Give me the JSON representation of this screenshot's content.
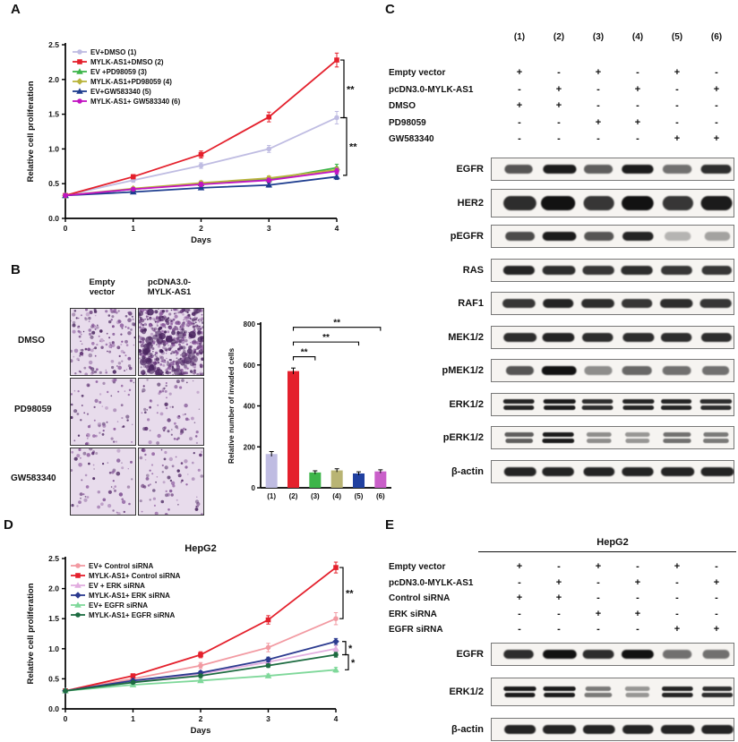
{
  "panels": {
    "A": {
      "label": "A"
    },
    "B": {
      "label": "B",
      "col_headers": [
        [
          "Empty",
          "vector"
        ],
        [
          "pcDNA3.0-",
          "MYLK-AS1"
        ]
      ],
      "row_labels": [
        "DMSO",
        "PD98059",
        "GW583340"
      ],
      "image_densities": [
        [
          165,
          570
        ],
        [
          75,
          85
        ],
        [
          70,
          80
        ]
      ]
    },
    "C": {
      "label": "C",
      "lanes": [
        "(1)",
        "(2)",
        "(3)",
        "(4)",
        "(5)",
        "(6)"
      ],
      "conditions": [
        {
          "name": "Empty vector",
          "marks": [
            "+",
            "-",
            "+",
            "-",
            "+",
            "-"
          ]
        },
        {
          "name": "pcDN3.0-MYLK-AS1",
          "marks": [
            "-",
            "+",
            "-",
            "+",
            "-",
            "+"
          ]
        },
        {
          "name": "DMSO",
          "marks": [
            "+",
            "+",
            "-",
            "-",
            "-",
            "-"
          ]
        },
        {
          "name": "PD98059",
          "marks": [
            "-",
            "-",
            "+",
            "+",
            "-",
            "-"
          ]
        },
        {
          "name": "GW583340",
          "marks": [
            "-",
            "-",
            "-",
            "-",
            "+",
            "+"
          ]
        }
      ],
      "blots": [
        {
          "name": "EGFR",
          "bands": [
            0.65,
            0.95,
            0.6,
            0.95,
            0.5,
            0.85
          ],
          "double": false,
          "thick": false
        },
        {
          "name": "HER2",
          "bands": [
            0.85,
            1.0,
            0.8,
            1.0,
            0.8,
            0.95
          ],
          "double": false,
          "thick": true
        },
        {
          "name": "pEGFR",
          "bands": [
            0.7,
            0.95,
            0.65,
            0.9,
            0.15,
            0.25
          ],
          "double": false,
          "thick": false
        },
        {
          "name": "RAS",
          "bands": [
            0.9,
            0.85,
            0.8,
            0.85,
            0.8,
            0.8
          ],
          "double": false,
          "thick": false
        },
        {
          "name": "RAF1",
          "bands": [
            0.8,
            0.9,
            0.85,
            0.8,
            0.85,
            0.8
          ],
          "double": false,
          "thick": false
        },
        {
          "name": "MEK1/2",
          "bands": [
            0.85,
            0.9,
            0.85,
            0.85,
            0.85,
            0.85
          ],
          "double": false,
          "thick": false
        },
        {
          "name": "pMEK1/2",
          "bands": [
            0.65,
            1.0,
            0.35,
            0.55,
            0.5,
            0.5
          ],
          "double": false,
          "thick": false
        },
        {
          "name": "ERK1/2",
          "bands": [
            0.9,
            0.95,
            0.85,
            0.9,
            0.9,
            0.85
          ],
          "double": true,
          "thick": false
        },
        {
          "name": "pERK1/2",
          "bands": [
            0.6,
            0.95,
            0.35,
            0.3,
            0.5,
            0.45
          ],
          "double": true,
          "thick": false
        },
        {
          "name": "β-actin",
          "bands": [
            0.9,
            0.9,
            0.9,
            0.9,
            0.9,
            0.9
          ],
          "double": false,
          "thick": false
        }
      ]
    },
    "D": {
      "label": "D"
    },
    "E": {
      "label": "E",
      "title": "HepG2",
      "conditions": [
        {
          "name": "Empty vector",
          "marks": [
            "+",
            "-",
            "+",
            "-",
            "+",
            "-"
          ]
        },
        {
          "name": "pcDN3.0-MYLK-AS1",
          "marks": [
            "-",
            "+",
            "-",
            "+",
            "-",
            "+"
          ]
        },
        {
          "name": "Control siRNA",
          "marks": [
            "+",
            "+",
            "-",
            "-",
            "-",
            "-"
          ]
        },
        {
          "name": "ERK siRNA",
          "marks": [
            "-",
            "-",
            "+",
            "+",
            "-",
            "-"
          ]
        },
        {
          "name": "EGFR siRNA",
          "marks": [
            "-",
            "-",
            "-",
            "-",
            "+",
            "+"
          ]
        }
      ],
      "blots": [
        {
          "name": "EGFR",
          "bands": [
            0.85,
            1.0,
            0.85,
            1.0,
            0.5,
            0.5
          ],
          "double": false,
          "thick": false
        },
        {
          "name": "ERK1/2",
          "bands": [
            0.95,
            0.95,
            0.45,
            0.3,
            0.9,
            0.85
          ],
          "double": true,
          "thick": true
        },
        {
          "name": "β-actin",
          "bands": [
            0.9,
            0.9,
            0.9,
            0.9,
            0.9,
            0.9
          ],
          "double": false,
          "thick": false
        }
      ]
    }
  },
  "chart_data": [
    {
      "panel": "A",
      "type": "line",
      "title": "",
      "xlabel": "Days",
      "ylabel": "Relative cell proliferation",
      "x": [
        0,
        1,
        2,
        3,
        4
      ],
      "ylim": [
        0,
        2.5
      ],
      "yticks": [
        0,
        0.5,
        1,
        1.5,
        2,
        2.5
      ],
      "series": [
        {
          "name": "EV+DMSO (1)",
          "color": "#bfbce2",
          "marker": "circle",
          "values": [
            0.33,
            0.55,
            0.76,
            1.0,
            1.45
          ],
          "err": [
            0.02,
            0.03,
            0.04,
            0.05,
            0.09
          ]
        },
        {
          "name": "MYLK-AS1+DMSO (2)",
          "color": "#e4202c",
          "marker": "square",
          "values": [
            0.33,
            0.6,
            0.92,
            1.46,
            2.28
          ],
          "err": [
            0.02,
            0.03,
            0.05,
            0.07,
            0.1
          ]
        },
        {
          "name": "EV +PD98059 (3)",
          "color": "#3db54a",
          "marker": "triangle",
          "values": [
            0.33,
            0.42,
            0.5,
            0.56,
            0.73
          ],
          "err": [
            0.02,
            0.02,
            0.03,
            0.03,
            0.05
          ]
        },
        {
          "name": "MYLK-AS1+PD98059 (4)",
          "color": "#b9b43c",
          "marker": "diamond",
          "values": [
            0.33,
            0.43,
            0.51,
            0.58,
            0.7
          ],
          "err": [
            0.02,
            0.02,
            0.03,
            0.03,
            0.04
          ]
        },
        {
          "name": "EV+GW583340 (5)",
          "color": "#1e3d8f",
          "marker": "triangle",
          "values": [
            0.33,
            0.38,
            0.44,
            0.48,
            0.6
          ],
          "err": [
            0.02,
            0.02,
            0.02,
            0.03,
            0.04
          ]
        },
        {
          "name": "MYLK-AS1+ GW583340 (6)",
          "color": "#c213c2",
          "marker": "circle",
          "values": [
            0.33,
            0.42,
            0.49,
            0.55,
            0.68
          ],
          "err": [
            0.02,
            0.02,
            0.03,
            0.03,
            0.04
          ]
        }
      ],
      "sig_brackets": [
        {
          "y1": 2.28,
          "y2": 1.45,
          "label": "**"
        },
        {
          "y1": 1.45,
          "y2": 0.62,
          "label": "**"
        }
      ]
    },
    {
      "panel": "B",
      "type": "bar",
      "ylabel": "Relative number of invaded cells",
      "categories": [
        "(1)",
        "(2)",
        "(3)",
        "(4)",
        "(5)",
        "(6)"
      ],
      "values": [
        165,
        570,
        75,
        85,
        70,
        80
      ],
      "err": [
        12,
        15,
        8,
        8,
        8,
        8
      ],
      "colors": [
        "#bfbce2",
        "#e4202c",
        "#3db54a",
        "#b9b474",
        "#2040a0",
        "#c95fc9"
      ],
      "ylim": [
        0,
        800
      ],
      "yticks": [
        0,
        200,
        400,
        600,
        800
      ],
      "sig_brackets": [
        {
          "from": 1,
          "to": 2,
          "y": 640,
          "label": "**"
        },
        {
          "from": 1,
          "to": 4,
          "y": 712,
          "label": "**"
        },
        {
          "from": 1,
          "to": 5,
          "y": 784,
          "label": "**"
        }
      ]
    },
    {
      "panel": "D",
      "type": "line",
      "title": "HepG2",
      "xlabel": "Days",
      "ylabel": "Relative cell proliferation",
      "x": [
        0,
        1,
        2,
        3,
        4
      ],
      "ylim": [
        0,
        2.5
      ],
      "yticks": [
        0,
        0.5,
        1,
        1.5,
        2,
        2.5
      ],
      "series": [
        {
          "name": "EV+ Control siRNA",
          "color": "#f29aa2",
          "marker": "circle",
          "values": [
            0.3,
            0.5,
            0.72,
            1.02,
            1.5
          ],
          "err": [
            0.02,
            0.03,
            0.05,
            0.07,
            0.1
          ]
        },
        {
          "name": "MYLK-AS1+ Control siRNA",
          "color": "#e4202c",
          "marker": "square",
          "values": [
            0.3,
            0.55,
            0.9,
            1.48,
            2.35
          ],
          "err": [
            0.02,
            0.03,
            0.05,
            0.07,
            0.09
          ]
        },
        {
          "name": "EV + ERK siRNA",
          "color": "#e2aee0",
          "marker": "triangle",
          "values": [
            0.3,
            0.46,
            0.58,
            0.78,
            1.0
          ],
          "err": [
            0.02,
            0.02,
            0.03,
            0.04,
            0.05
          ]
        },
        {
          "name": "MYLK-AS1+ ERK siRNA",
          "color": "#2b3a8f",
          "marker": "diamond",
          "values": [
            0.3,
            0.47,
            0.6,
            0.82,
            1.12
          ],
          "err": [
            0.02,
            0.02,
            0.03,
            0.04,
            0.05
          ]
        },
        {
          "name": "EV+ EGFR siRNA",
          "color": "#7fd89a",
          "marker": "triangle",
          "values": [
            0.3,
            0.4,
            0.47,
            0.55,
            0.65
          ],
          "err": [
            0.02,
            0.02,
            0.02,
            0.03,
            0.04
          ]
        },
        {
          "name": "MYLK-AS1+ EGFR siRNA",
          "color": "#1c6b40",
          "marker": "circle",
          "values": [
            0.3,
            0.44,
            0.55,
            0.72,
            0.9
          ],
          "err": [
            0.02,
            0.02,
            0.03,
            0.03,
            0.04
          ]
        }
      ],
      "sig_brackets": [
        {
          "y1": 2.35,
          "y2": 1.5,
          "label": "**"
        },
        {
          "y1": 1.12,
          "y2": 0.9,
          "label": "*"
        },
        {
          "y1": 0.9,
          "y2": 0.65,
          "label": "*"
        }
      ]
    }
  ]
}
